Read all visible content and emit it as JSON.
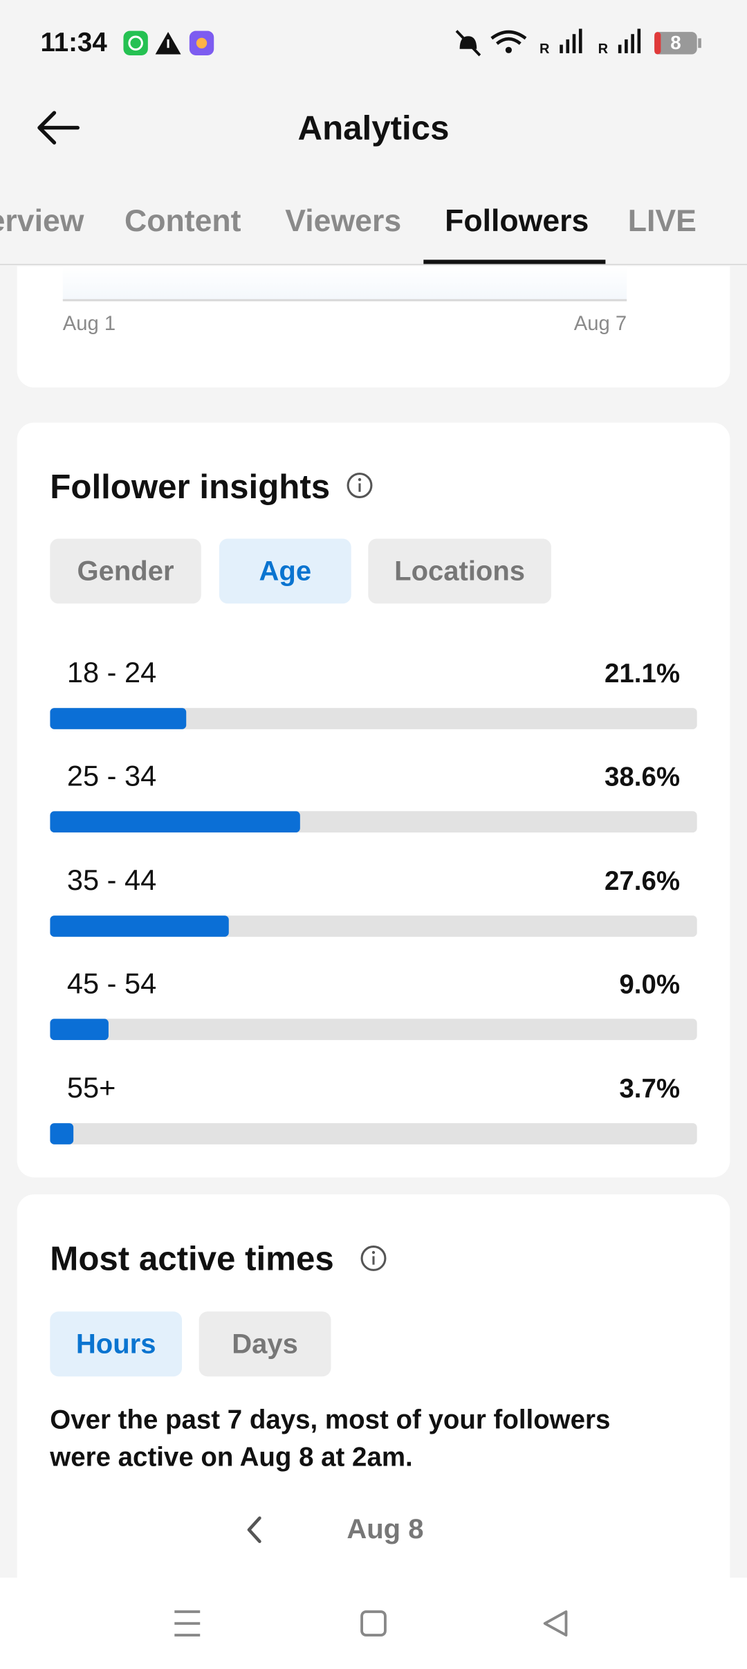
{
  "status_bar": {
    "time": "11:34",
    "network_labels": [
      "R",
      "R"
    ],
    "battery": "8"
  },
  "header": {
    "title": "Analytics"
  },
  "tabs": [
    "Overview",
    "Content",
    "Viewers",
    "Followers",
    "LIVE"
  ],
  "trend_card": {
    "x_labels": [
      "Aug 1",
      "Aug 7"
    ]
  },
  "follower_insights": {
    "title": "Follower insights",
    "filters": [
      "Gender",
      "Age",
      "Locations"
    ],
    "chart_data": {
      "type": "bar",
      "orientation": "horizontal",
      "color": "#0b6fd6",
      "categories": [
        "18 - 24",
        "25 - 34",
        "35 - 44",
        "45 - 54",
        "55+"
      ],
      "values": [
        21.1,
        38.6,
        27.6,
        9.0,
        3.7
      ],
      "value_labels": [
        "21.1%",
        "38.6%",
        "27.6%",
        "9.0%",
        "3.7%"
      ],
      "xlim": [
        0,
        100
      ]
    }
  },
  "active_times": {
    "title": "Most active times",
    "filters": [
      "Hours",
      "Days"
    ],
    "summary_lines": [
      "Over the past 7 days, most of your followers",
      "were active on Aug 8 at 2am."
    ],
    "date": "Aug 8"
  }
}
